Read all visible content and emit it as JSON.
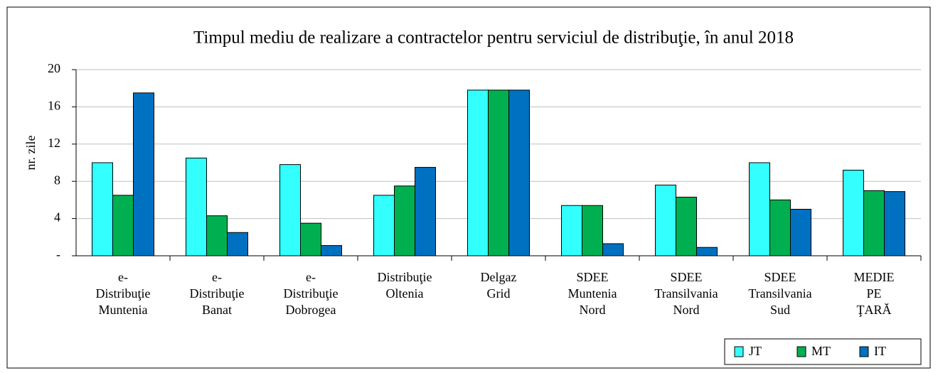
{
  "chart_data": {
    "type": "bar",
    "title": "Timpul mediu de realizare a contractelor pentru serviciul de distribuţie, în anul 2018",
    "y_label": "nr. zile",
    "categories": [
      [
        "e-",
        "Distribuţie",
        "Muntenia"
      ],
      [
        "e-",
        "Distribuţie",
        "Banat"
      ],
      [
        "e-",
        "Distribuţie",
        "Dobrogea"
      ],
      [
        "Distribuţie",
        "Oltenia"
      ],
      [
        "Delgaz",
        "Grid"
      ],
      [
        "SDEE",
        "Muntenia",
        "Nord"
      ],
      [
        "SDEE",
        "Transilvania",
        "Nord"
      ],
      [
        "SDEE",
        "Transilvania",
        "Sud"
      ],
      [
        "MEDIE",
        "PE",
        "ŢARĂ"
      ]
    ],
    "series": [
      {
        "name": "JT",
        "color": "#33ffff",
        "values": [
          10.0,
          10.5,
          9.8,
          6.5,
          17.8,
          5.4,
          7.6,
          10.0,
          9.2
        ]
      },
      {
        "name": "MT",
        "color": "#00b050",
        "values": [
          6.5,
          4.3,
          3.5,
          7.5,
          17.8,
          5.4,
          6.3,
          6.0,
          7.0
        ]
      },
      {
        "name": "IT",
        "color": "#0070c0",
        "values": [
          17.5,
          2.5,
          1.1,
          9.5,
          17.8,
          1.3,
          0.9,
          5.0,
          6.9
        ]
      }
    ],
    "ylim": [
      0,
      20
    ],
    "yticks": [
      {
        "value": 0,
        "label": "-"
      },
      4,
      8,
      12,
      16,
      20
    ],
    "grid": true,
    "legend": "bottom-right"
  }
}
